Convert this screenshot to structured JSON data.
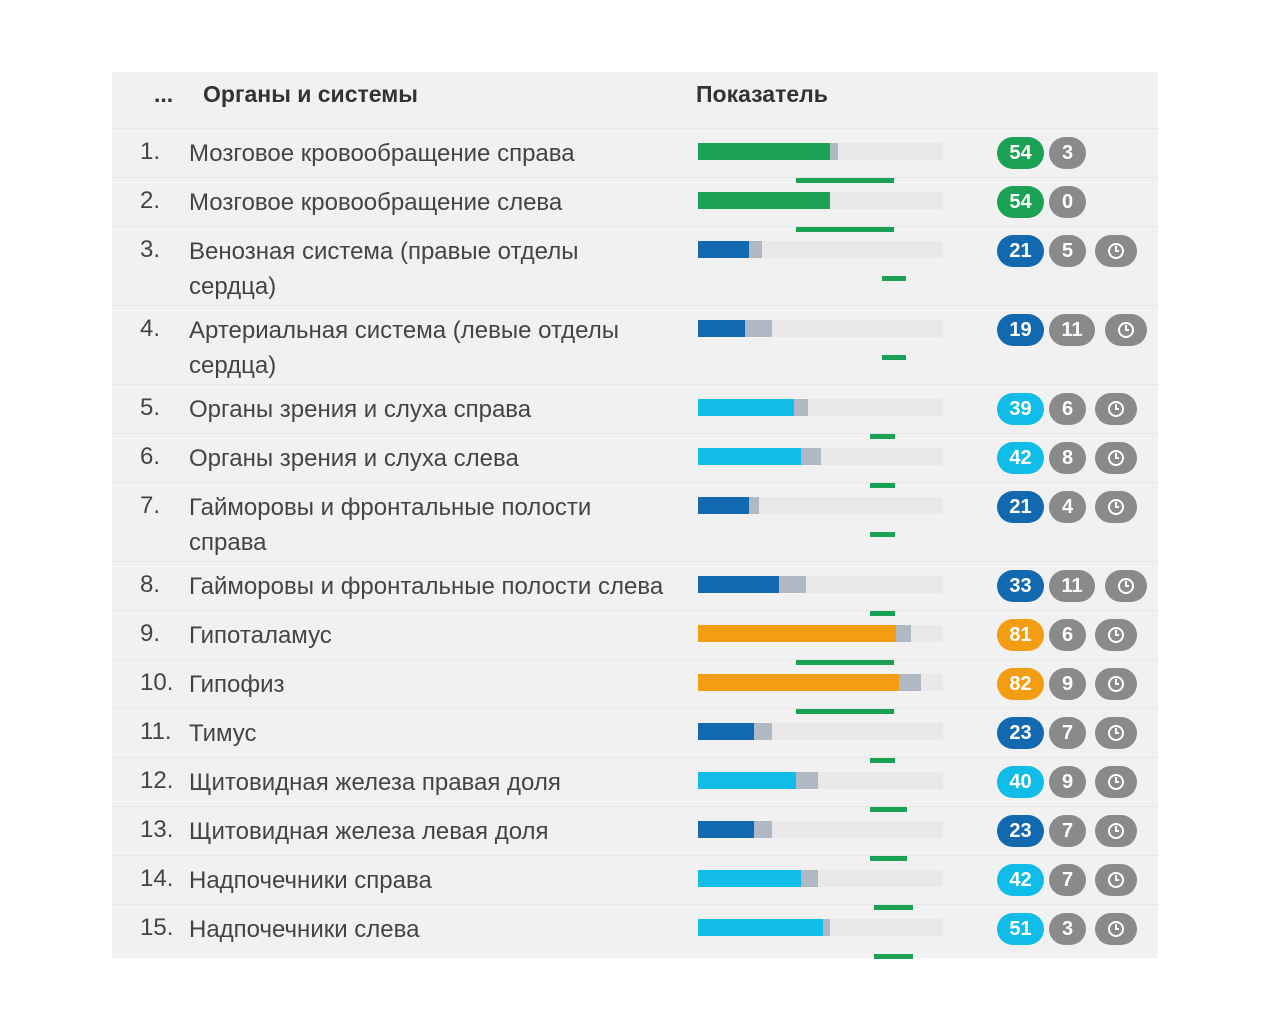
{
  "header": {
    "index_label": "...",
    "organ_label": "Органы и системы",
    "indicator_label": "Показатель"
  },
  "colors": {
    "green": "#1aa154",
    "dark_blue": "#1269b0",
    "light_blue": "#0fbde8",
    "orange": "#f29d12",
    "gray_badge": "#8a8a8a",
    "gray_bar": "#b0b8c4"
  },
  "rows": [
    {
      "num": "1.",
      "name": "Мозговое кровообращение справа",
      "value": "54",
      "gray_value": "3",
      "color": "#1aa154",
      "clock": false,
      "fill_frac": 0.54,
      "gray_frac": 0.03,
      "norm_frac": [
        0.4,
        0.8
      ]
    },
    {
      "num": "2.",
      "name": "Мозговое кровообращение слева",
      "value": "54",
      "gray_value": "0",
      "color": "#1aa154",
      "clock": false,
      "fill_frac": 0.54,
      "gray_frac": 0.0,
      "norm_frac": [
        0.4,
        0.8
      ]
    },
    {
      "num": "3.",
      "name": "Венозная система (правые отделы сердца)",
      "value": "21",
      "gray_value": "5",
      "color": "#1269b0",
      "clock": true,
      "fill_frac": 0.21,
      "gray_frac": 0.05,
      "norm_frac": [
        0.75,
        0.85
      ]
    },
    {
      "num": "4.",
      "name": "Артериальная система (левые отделы сердца)",
      "value": "19",
      "gray_value": "11",
      "color": "#1269b0",
      "clock": true,
      "fill_frac": 0.19,
      "gray_frac": 0.11,
      "norm_frac": [
        0.75,
        0.85
      ]
    },
    {
      "num": "5.",
      "name": "Органы зрения и слуха справа",
      "value": "39",
      "gray_value": "6",
      "color": "#0fbde8",
      "clock": true,
      "fill_frac": 0.39,
      "gray_frac": 0.06,
      "norm_frac": [
        0.7,
        0.8
      ]
    },
    {
      "num": "6.",
      "name": "Органы зрения и слуха слева",
      "value": "42",
      "gray_value": "8",
      "color": "#0fbde8",
      "clock": true,
      "fill_frac": 0.42,
      "gray_frac": 0.08,
      "norm_frac": [
        0.7,
        0.8
      ]
    },
    {
      "num": "7.",
      "name": "Гайморовы и фронтальные полости справа",
      "value": "21",
      "gray_value": "4",
      "color": "#1269b0",
      "clock": true,
      "fill_frac": 0.21,
      "gray_frac": 0.04,
      "norm_frac": [
        0.7,
        0.8
      ]
    },
    {
      "num": "8.",
      "name": "Гайморовы и фронтальные полости слева",
      "value": "33",
      "gray_value": "11",
      "color": "#1269b0",
      "clock": true,
      "fill_frac": 0.33,
      "gray_frac": 0.11,
      "norm_frac": [
        0.7,
        0.8
      ]
    },
    {
      "num": "9.",
      "name": "Гипоталамус",
      "value": "81",
      "gray_value": "6",
      "color": "#f29d12",
      "clock": true,
      "fill_frac": 0.81,
      "gray_frac": 0.06,
      "norm_frac": [
        0.4,
        0.8
      ]
    },
    {
      "num": "10.",
      "name": "Гипофиз",
      "value": "82",
      "gray_value": "9",
      "color": "#f29d12",
      "clock": true,
      "fill_frac": 0.82,
      "gray_frac": 0.09,
      "norm_frac": [
        0.4,
        0.8
      ]
    },
    {
      "num": "11.",
      "name": "Тимус",
      "value": "23",
      "gray_value": "7",
      "color": "#1269b0",
      "clock": true,
      "fill_frac": 0.23,
      "gray_frac": 0.07,
      "norm_frac": [
        0.7,
        0.8
      ]
    },
    {
      "num": "12.",
      "name": "Щитовидная железа правая доля",
      "value": "40",
      "gray_value": "9",
      "color": "#0fbde8",
      "clock": true,
      "fill_frac": 0.4,
      "gray_frac": 0.09,
      "norm_frac": [
        0.7,
        0.85
      ]
    },
    {
      "num": "13.",
      "name": "Щитовидная железа левая доля",
      "value": "23",
      "gray_value": "7",
      "color": "#1269b0",
      "clock": true,
      "fill_frac": 0.23,
      "gray_frac": 0.07,
      "norm_frac": [
        0.7,
        0.85
      ]
    },
    {
      "num": "14.",
      "name": "Надпочечники справа",
      "value": "42",
      "gray_value": "7",
      "color": "#0fbde8",
      "clock": true,
      "fill_frac": 0.42,
      "gray_frac": 0.07,
      "norm_frac": [
        0.72,
        0.88
      ]
    },
    {
      "num": "15.",
      "name": "Надпочечники слева",
      "value": "51",
      "gray_value": "3",
      "color": "#0fbde8",
      "clock": true,
      "fill_frac": 0.51,
      "gray_frac": 0.03,
      "norm_frac": [
        0.72,
        0.88
      ]
    }
  ]
}
